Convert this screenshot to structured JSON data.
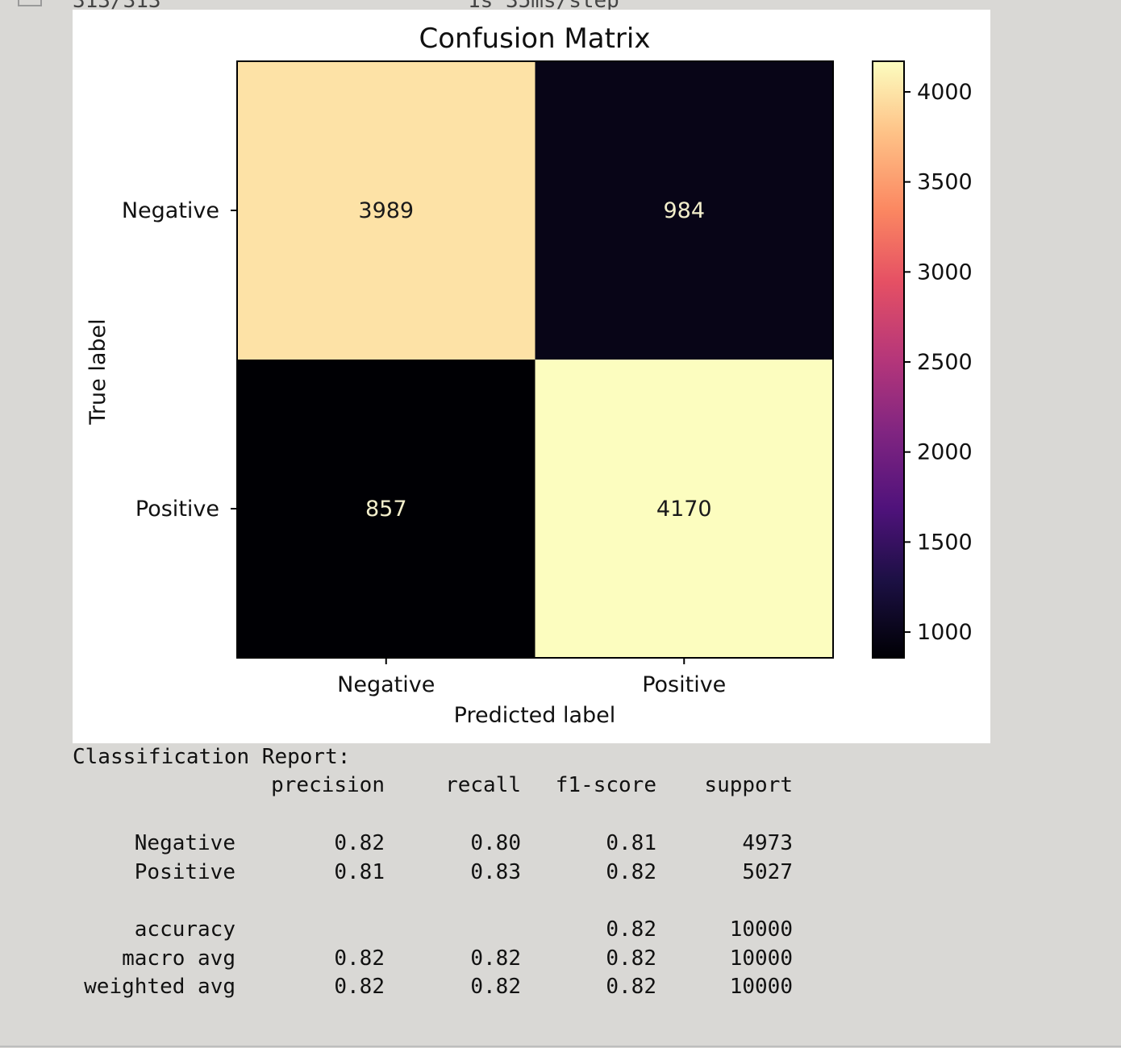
{
  "top_strip": {
    "left_text": "313/313",
    "right_text": "1s 35ms/step"
  },
  "colors": {
    "background": "#d9d8d5",
    "figure_bg": "#ffffff",
    "colormap": "magma",
    "cell_text": "#f2eecb"
  },
  "chart_data": {
    "type": "heatmap",
    "title": "Confusion Matrix",
    "xlabel": "Predicted label",
    "ylabel": "True label",
    "x_categories": [
      "Negative",
      "Positive"
    ],
    "y_categories": [
      "Negative",
      "Positive"
    ],
    "matrix": [
      [
        3989,
        984
      ],
      [
        857,
        4170
      ]
    ],
    "colorbar": {
      "range": [
        857,
        4170
      ],
      "ticks": [
        1000,
        1500,
        2000,
        2500,
        3000,
        3500,
        4000
      ],
      "colormap": "magma"
    }
  },
  "report": {
    "heading": "Classification Report:",
    "columns": [
      "precision",
      "recall",
      "f1-score",
      "support"
    ],
    "rows": [
      {
        "label": "Negative",
        "precision": "0.82",
        "recall": "0.80",
        "f1": "0.81",
        "support": "4973"
      },
      {
        "label": "Positive",
        "precision": "0.81",
        "recall": "0.83",
        "f1": "0.82",
        "support": "5027"
      }
    ],
    "summary": [
      {
        "label": "accuracy",
        "precision": "",
        "recall": "",
        "f1": "0.82",
        "support": "10000"
      },
      {
        "label": "macro avg",
        "precision": "0.82",
        "recall": "0.82",
        "f1": "0.82",
        "support": "10000"
      },
      {
        "label": "weighted avg",
        "precision": "0.82",
        "recall": "0.82",
        "f1": "0.82",
        "support": "10000"
      }
    ]
  }
}
